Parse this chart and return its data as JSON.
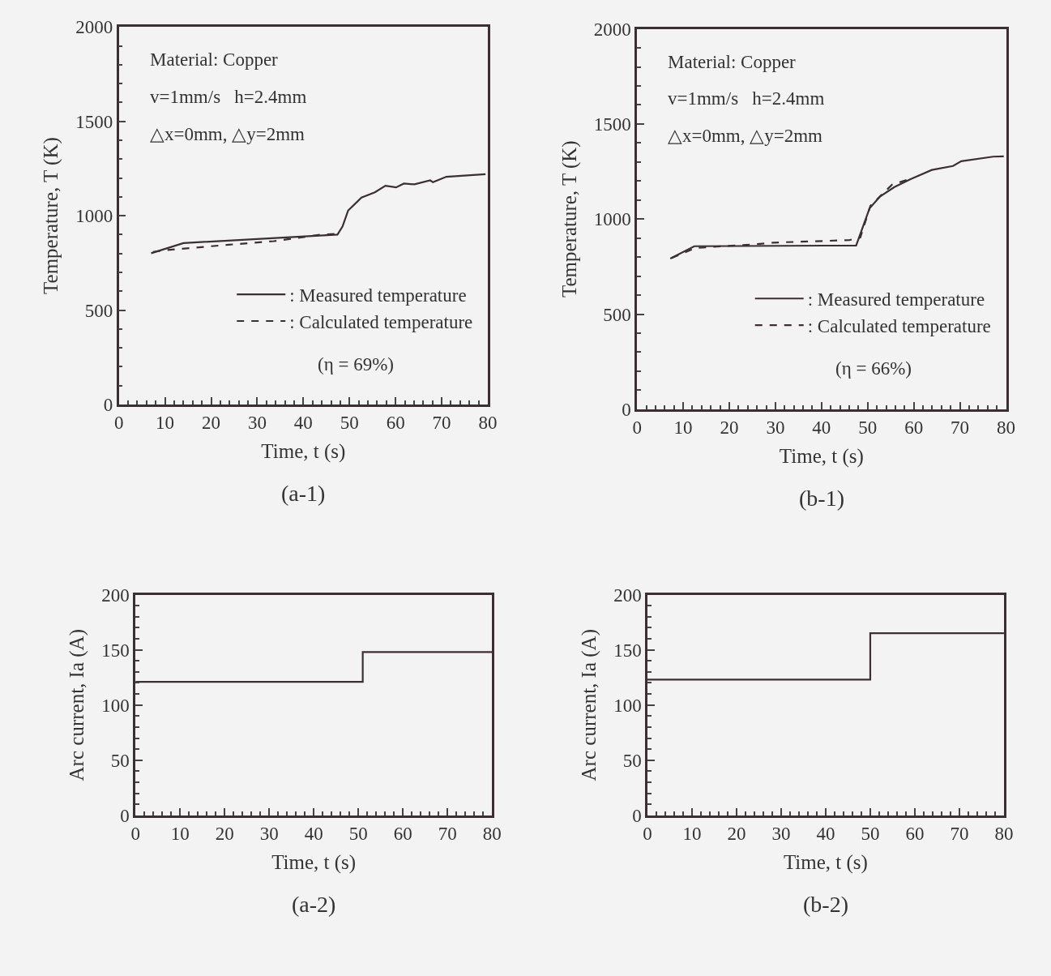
{
  "chart_data": [
    {
      "type": "line",
      "xlabel": "Time, t (s)",
      "ylabel": "Temperature, T (K)",
      "xlim": [
        0,
        80
      ],
      "xticks": [
        0,
        10,
        20,
        30,
        40,
        50,
        60,
        70,
        80
      ],
      "ylim": [
        0,
        2000
      ],
      "yticks": [
        0,
        500,
        1000,
        1500,
        2000
      ],
      "legend": "bottom right",
      "grid": false,
      "annotations": [
        "Material: Copper",
        "v=1mm/s   h=2.4mm",
        "△x=0mm, △y=2mm",
        "(η = 69%)",
        "(a-1)"
      ],
      "series": [
        {
          "name": ": Measured temperature",
          "color": "#3a3033",
          "line_style": "solid",
          "x": [
            7,
            14,
            47.4,
            48.5,
            49.7,
            52.6,
            55.5,
            57.8,
            60.1,
            61.8,
            64.1,
            67.5,
            68.1,
            71,
            79.5
          ],
          "values": [
            801,
            855,
            900,
            943,
            1027,
            1096,
            1124,
            1159,
            1150,
            1170,
            1166,
            1187,
            1177,
            1206,
            1220
          ]
        },
        {
          "name": ": Calculated temperature",
          "color": "#3a3033",
          "line_style": "dashed",
          "x": [
            7.4,
            10.3,
            23.8,
            33.6,
            44,
            46.9
          ],
          "values": [
            808,
            818,
            846,
            865,
            900,
            904
          ]
        }
      ]
    },
    {
      "type": "line",
      "xlabel": "Time, t (s)",
      "ylabel": "Temperature, T (K)",
      "xlim": [
        0,
        80
      ],
      "xticks": [
        0,
        10,
        20,
        30,
        40,
        50,
        60,
        70,
        80
      ],
      "ylim": [
        0,
        2000
      ],
      "yticks": [
        0,
        500,
        1000,
        1500,
        2000
      ],
      "legend": "bottom right",
      "grid": false,
      "annotations": [
        "Material: Copper",
        "v=1mm/s   h=2.4mm",
        "△x=0mm, △y=2mm",
        "(η = 66%)",
        "(b-1)"
      ],
      "series": [
        {
          "name": ": Measured temperature",
          "color": "#3a3033",
          "line_style": "solid",
          "x": [
            7.2,
            12.4,
            47.5,
            50.4,
            52.7,
            55.8,
            59.3,
            63.9,
            68.5,
            70.3,
            77.2,
            79.5
          ],
          "values": [
            792,
            857,
            861,
            1056,
            1119,
            1168,
            1210,
            1258,
            1279,
            1304,
            1328,
            1330
          ]
        },
        {
          "name": ": Calculated temperature",
          "color": "#3a3033",
          "line_style": "dashed",
          "x": [
            7.5,
            12.7,
            26,
            29.5,
            46,
            48.4,
            50.6,
            55.3,
            59.9
          ],
          "values": [
            795,
            848,
            868,
            876,
            889,
            903,
            1070,
            1181,
            1216
          ]
        }
      ]
    },
    {
      "type": "step",
      "xlabel": "Time, t (s)",
      "ylabel": "Arc current, Ia (A)",
      "xlim": [
        0,
        80
      ],
      "xticks": [
        0,
        10,
        20,
        30,
        40,
        50,
        60,
        70,
        80
      ],
      "ylim": [
        0,
        200
      ],
      "yticks": [
        0,
        50,
        100,
        150,
        200
      ],
      "grid": false,
      "annotations": [
        "(a-2)"
      ],
      "series": [
        {
          "color": "#3a3033",
          "x": [
            0,
            51,
            80
          ],
          "values": [
            121,
            148,
            148
          ]
        }
      ]
    },
    {
      "type": "step",
      "xlabel": "Time, t (s)",
      "ylabel": "Arc current, Ia (A)",
      "xlim": [
        0,
        80
      ],
      "xticks": [
        0,
        10,
        20,
        30,
        40,
        50,
        60,
        70,
        80
      ],
      "ylim": [
        0,
        200
      ],
      "yticks": [
        0,
        50,
        100,
        150,
        200
      ],
      "grid": false,
      "annotations": [
        "(b-2)"
      ],
      "series": [
        {
          "color": "#3a3033",
          "x": [
            0,
            50,
            80
          ],
          "values": [
            123,
            165,
            165
          ]
        }
      ]
    }
  ]
}
